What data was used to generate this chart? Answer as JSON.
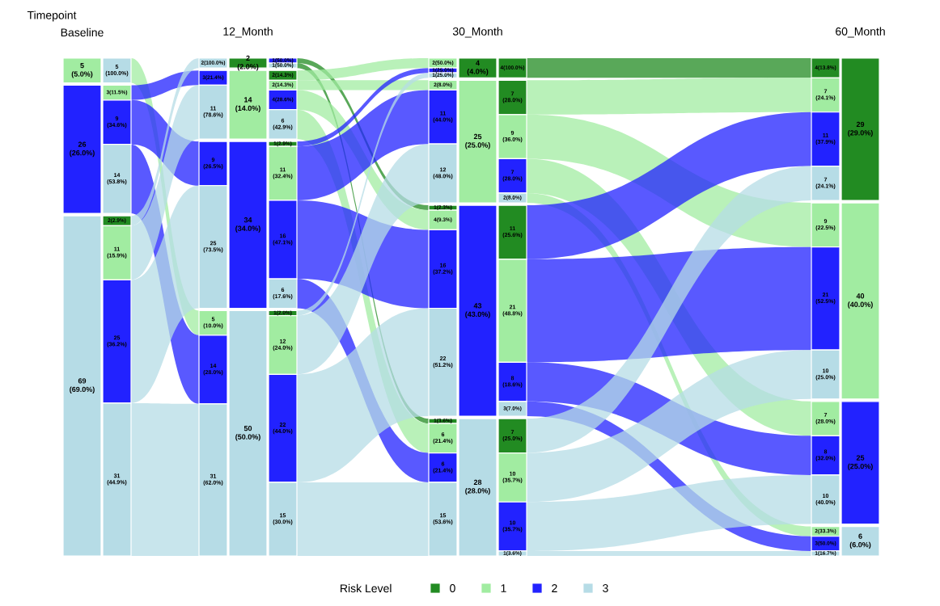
{
  "chart_data": {
    "type": "other",
    "xlabel": "Timepoint",
    "categories": [
      "Baseline",
      "12_Month",
      "30_Month",
      "60_Month"
    ],
    "legend_title": "Risk Level",
    "legend": "bottom",
    "series": [
      {
        "name": "0",
        "color": "#228b22",
        "values": [
          null,
          2,
          4,
          29
        ],
        "value_labels": [
          null,
          "2 (2.0%)",
          "4 (4.0%)",
          "29 (29.0%)"
        ]
      },
      {
        "name": "1",
        "color": "#a1eca1",
        "values": [
          5,
          14,
          25,
          40
        ],
        "value_labels": [
          "5 (5.0%)",
          "14 (14.0%)",
          "25 (25.0%)",
          "40 (40.0%)"
        ]
      },
      {
        "name": "2",
        "color": "#2222ff",
        "values": [
          26,
          34,
          43,
          25
        ],
        "value_labels": [
          "26 (26.0%)",
          "34 (34.0%)",
          "43 (43.0%)",
          "25 (25.0%)"
        ]
      },
      {
        "name": "3",
        "color": "#b6dce6",
        "values": [
          69,
          50,
          28,
          6
        ],
        "value_labels": [
          "69 (69.0%)",
          "50 (50.0%)",
          "28 (28.0%)",
          "6 (6.0%)"
        ]
      }
    ],
    "cell_labels": [
      [
        null,
        null,
        null,
        null
      ],
      [
        null,
        null,
        null,
        "5 (100.0%)"
      ],
      [
        null,
        "3(11.5%)",
        "9 (34.6%)",
        "14 (53.8%)"
      ],
      [
        "2(2.9%)",
        "11 (15.9%)",
        "25 (36.2%)",
        "31 (44.9%)"
      ],
      [
        null,
        null,
        "1(50.0%)",
        "1(50.0%)"
      ],
      [
        "2(14.3%)",
        "2(14.3%)",
        "4(28.6%)",
        "6 (42.9%)"
      ],
      [
        "1(2.9%)",
        "11 (32.4%)",
        "16 (47.1%)",
        "6 (17.6%)"
      ],
      [
        "1(2.0%)",
        "12 (24.0%)",
        "22 (44.0%)",
        "15 (30.0%)"
      ],
      [
        "4(100.0%)",
        null,
        null,
        null
      ],
      [
        "7 (28.0%)",
        "9 (36.0%)",
        "7 (28.0%)",
        "2(8.0%)"
      ],
      [
        "11 (25.6%)",
        "21 (48.8%)",
        "8 (18.6%)",
        "3(7.0%)"
      ],
      [
        "7 (25.0%)",
        "10 (35.7%)",
        "10 (35.7%)",
        "1(3.6%)"
      ]
    ],
    "annotations": [
      "2(100.0%)",
      "3(21.4%)",
      "11 (78.6%)",
      "9 (26.5%)",
      "25 (73.5%)",
      "5 (10.0%)",
      "14 (28.0%)",
      "31 (62.0%)",
      "2(50.0%)",
      "1(25.0%)",
      "1(25.0%)",
      "2(8.0%)",
      "11 (44.0%)",
      "12 (48.0%)",
      "1(2.3%)",
      "4(9.3%)",
      "16 (37.2%)",
      "22 (51.2%)",
      "1(3.6%)",
      "6 (21.4%)",
      "6 (21.4%)",
      "15 (53.6%)",
      "4(13.8%)",
      "7 (24.1%)",
      "11 (37.9%)",
      "7 (24.1%)",
      "9 (22.5%)",
      "21 (52.5%)",
      "10 (25.0%)",
      "7 (28.0%)",
      "8 (32.0%)",
      "10 (40.0%)",
      "2(33.3%)",
      "3(50.0%)",
      "1(16.7%)"
    ]
  }
}
